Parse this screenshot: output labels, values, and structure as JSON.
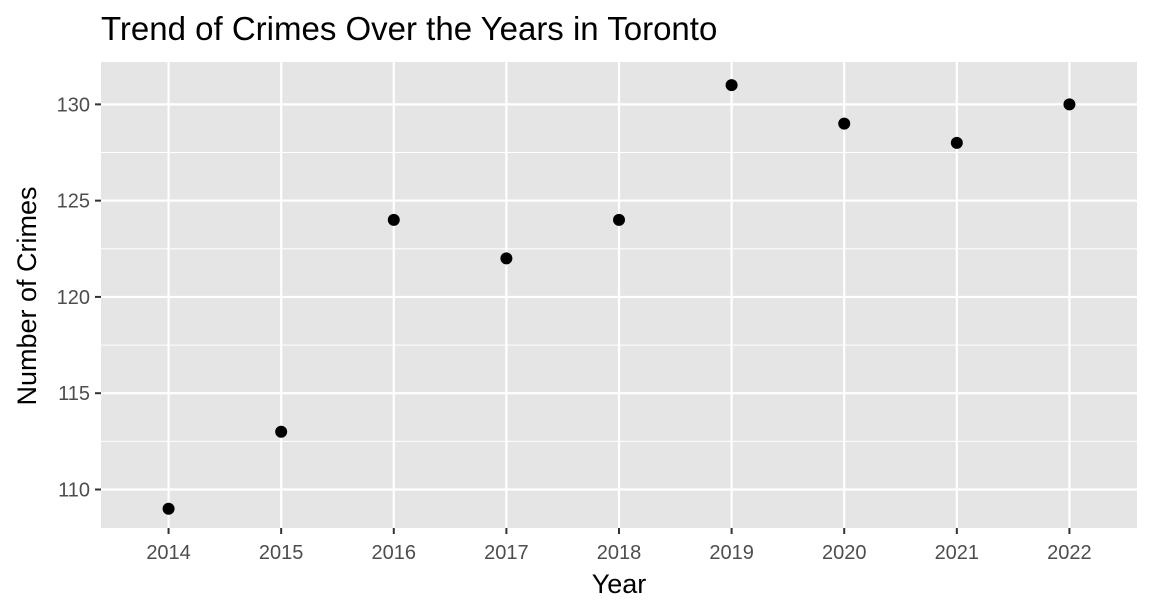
{
  "chart_data": {
    "type": "scatter",
    "title": "Trend of Crimes Over the Years in Toronto",
    "xlabel": "Year",
    "ylabel": "Number of Crimes",
    "x": [
      2014,
      2015,
      2016,
      2017,
      2018,
      2019,
      2020,
      2021,
      2022
    ],
    "y": [
      109,
      113,
      124,
      122,
      124,
      131,
      129,
      128,
      130
    ],
    "x_ticks": [
      "2014",
      "2015",
      "2016",
      "2017",
      "2018",
      "2019",
      "2020",
      "2021",
      "2022"
    ],
    "y_ticks": [
      "110",
      "115",
      "120",
      "125",
      "130"
    ],
    "xlim": [
      2013.4,
      2022.6
    ],
    "ylim": [
      108,
      132.2
    ],
    "grid": true,
    "legend": "none",
    "colors": {
      "panel_background": "#e5e5e5",
      "gridline": "#ffffff",
      "point": "#000000",
      "tick_label": "#4d4d4d",
      "tick_mark": "#333333"
    }
  }
}
